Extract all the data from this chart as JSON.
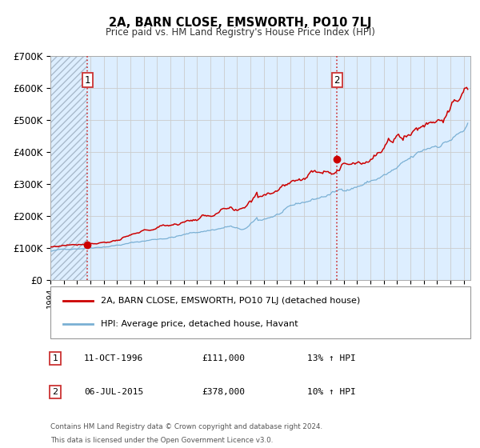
{
  "title": "2A, BARN CLOSE, EMSWORTH, PO10 7LJ",
  "subtitle": "Price paid vs. HM Land Registry's House Price Index (HPI)",
  "xmin": 1994.0,
  "xmax": 2025.5,
  "ymin": 0,
  "ymax": 700000,
  "yticks": [
    0,
    100000,
    200000,
    300000,
    400000,
    500000,
    600000,
    700000
  ],
  "ytick_labels": [
    "£0",
    "£100K",
    "£200K",
    "£300K",
    "£400K",
    "£500K",
    "£600K",
    "£700K"
  ],
  "sale1_x": 1996.78,
  "sale1_y": 111000,
  "sale1_label": "1",
  "sale1_date": "11-OCT-1996",
  "sale1_price": "£111,000",
  "sale1_hpi": "13% ↑ HPI",
  "sale2_x": 2015.5,
  "sale2_y": 378000,
  "sale2_label": "2",
  "sale2_date": "06-JUL-2015",
  "sale2_price": "£378,000",
  "sale2_hpi": "10% ↑ HPI",
  "red_line_color": "#cc0000",
  "blue_line_color": "#7ab0d4",
  "hatch_color": "#aabbcc",
  "grid_color": "#cccccc",
  "bg_color": "#ddeeff",
  "legend_label1": "2A, BARN CLOSE, EMSWORTH, PO10 7LJ (detached house)",
  "legend_label2": "HPI: Average price, detached house, Havant",
  "footer1": "Contains HM Land Registry data © Crown copyright and database right 2024.",
  "footer2": "This data is licensed under the Open Government Licence v3.0."
}
